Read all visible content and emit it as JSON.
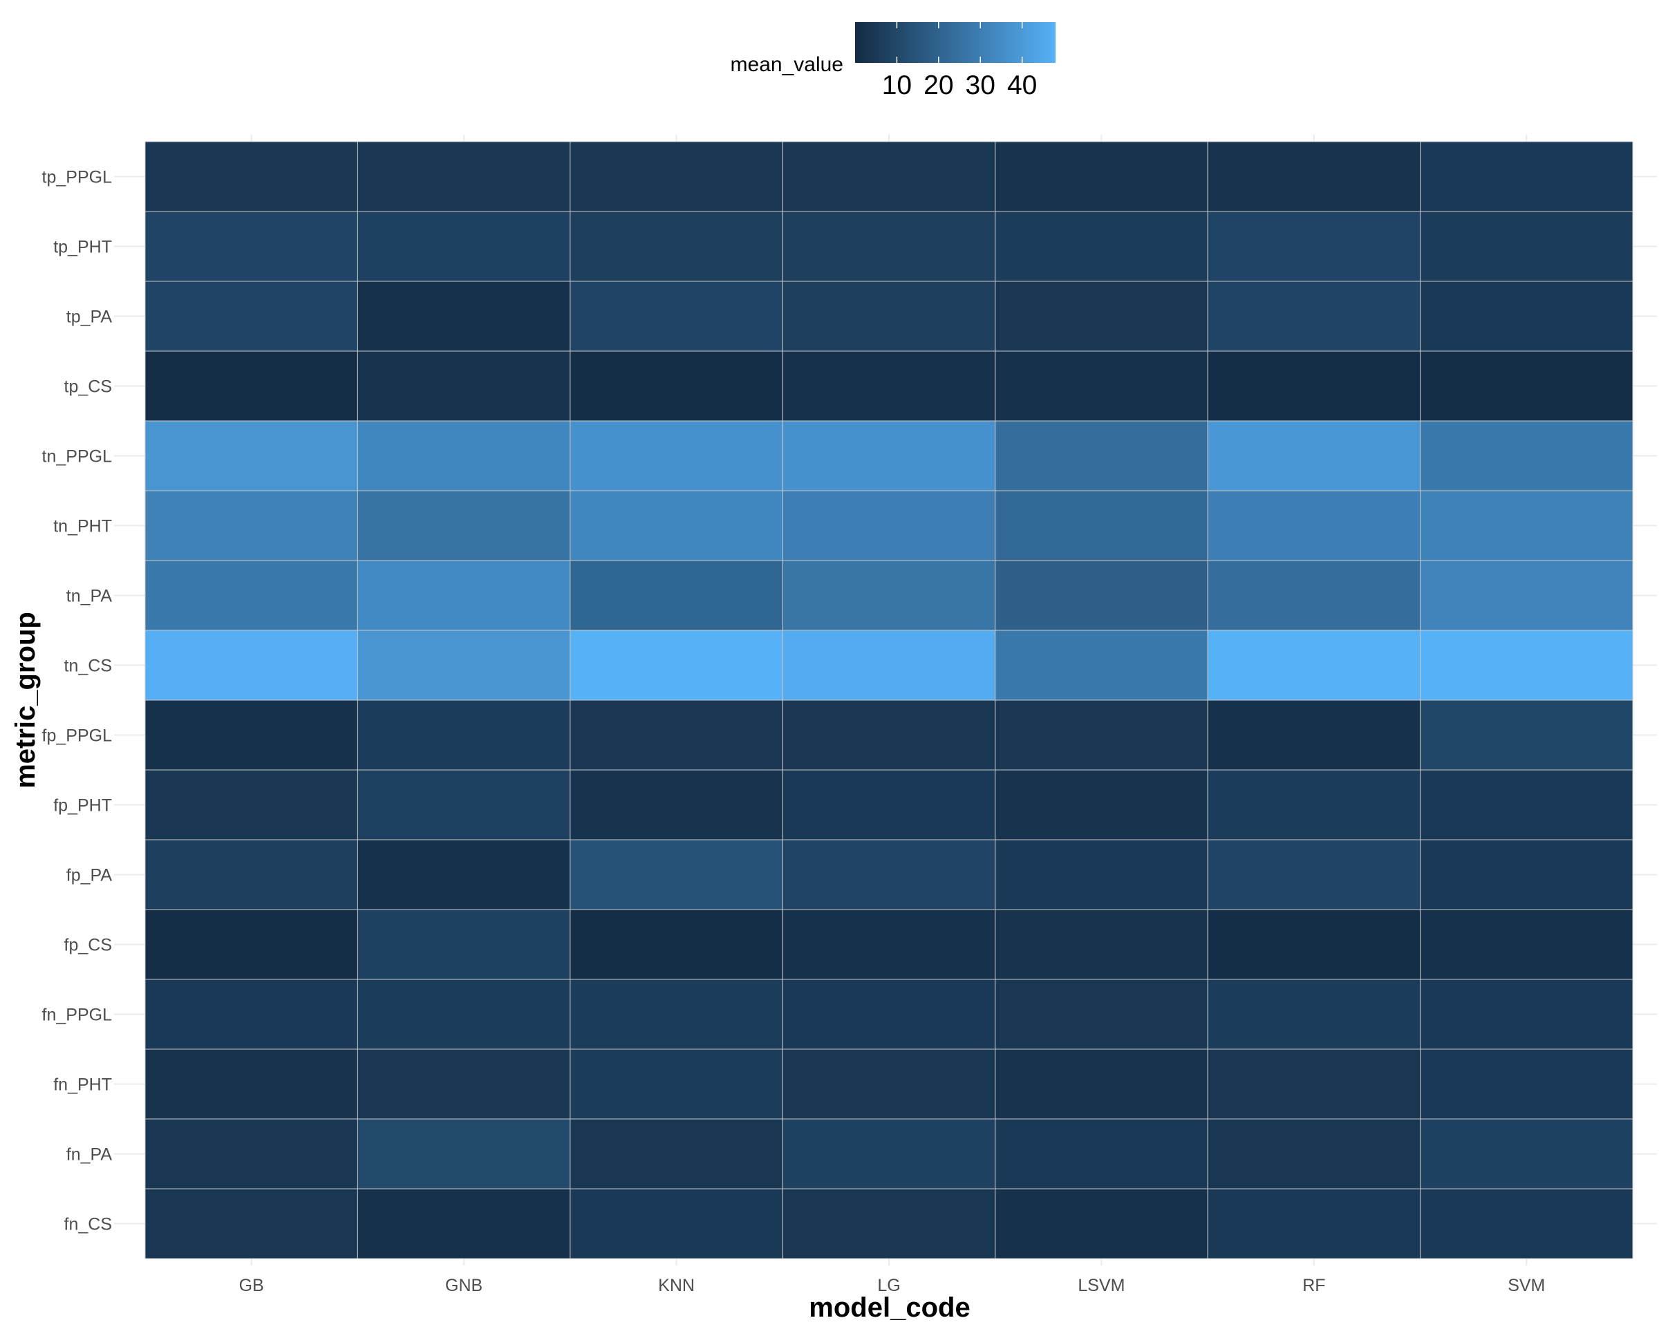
{
  "chart_data": {
    "type": "heatmap",
    "title": "",
    "xlabel": "model_code",
    "ylabel": "metric_group",
    "x_categories": [
      "GB",
      "GNB",
      "KNN",
      "LG",
      "LSVM",
      "RF",
      "SVM"
    ],
    "y_categories_top_to_bottom": [
      "tp_PPGL",
      "tp_PHT",
      "tp_PA",
      "tp_CS",
      "tn_PPGL",
      "tn_PHT",
      "tn_PA",
      "tn_CS",
      "fp_PPGL",
      "fp_PHT",
      "fp_PA",
      "fp_CS",
      "fn_PPGL",
      "fn_PHT",
      "fn_PA",
      "fn_CS"
    ],
    "values": [
      [
        4,
        4,
        4,
        4,
        3,
        3,
        5
      ],
      [
        9,
        8,
        7,
        7,
        6,
        9,
        6
      ],
      [
        9,
        2,
        9,
        7,
        4,
        9,
        5
      ],
      [
        1,
        3,
        1,
        2,
        2,
        1,
        1
      ],
      [
        38,
        33,
        37,
        37,
        24,
        39,
        28
      ],
      [
        31,
        26,
        33,
        30,
        22,
        30,
        31
      ],
      [
        28,
        34,
        21,
        27,
        19,
        24,
        32
      ],
      [
        47,
        38,
        48,
        46,
        28,
        48,
        48
      ],
      [
        2,
        6,
        4,
        4,
        4,
        2,
        10
      ],
      [
        4,
        8,
        3,
        5,
        3,
        6,
        5
      ],
      [
        7,
        2,
        14,
        9,
        5,
        9,
        5
      ],
      [
        1,
        8,
        1,
        2,
        3,
        1,
        2
      ],
      [
        5,
        6,
        6,
        5,
        4,
        6,
        5
      ],
      [
        3,
        4,
        6,
        4,
        3,
        4,
        5
      ],
      [
        4,
        11,
        4,
        8,
        5,
        4,
        8
      ],
      [
        4,
        2,
        5,
        4,
        2,
        5,
        5
      ]
    ],
    "legend": {
      "title": "mean_value",
      "position": "top",
      "ticks": [
        10,
        20,
        30,
        40
      ],
      "range": [
        0,
        48
      ],
      "low_color": "#132B43",
      "high_color": "#56B1F7"
    },
    "grid": true,
    "panel_background": "#ffffff",
    "grid_color": "#ebebeb",
    "cell_border_color": "#c8c8c8"
  }
}
